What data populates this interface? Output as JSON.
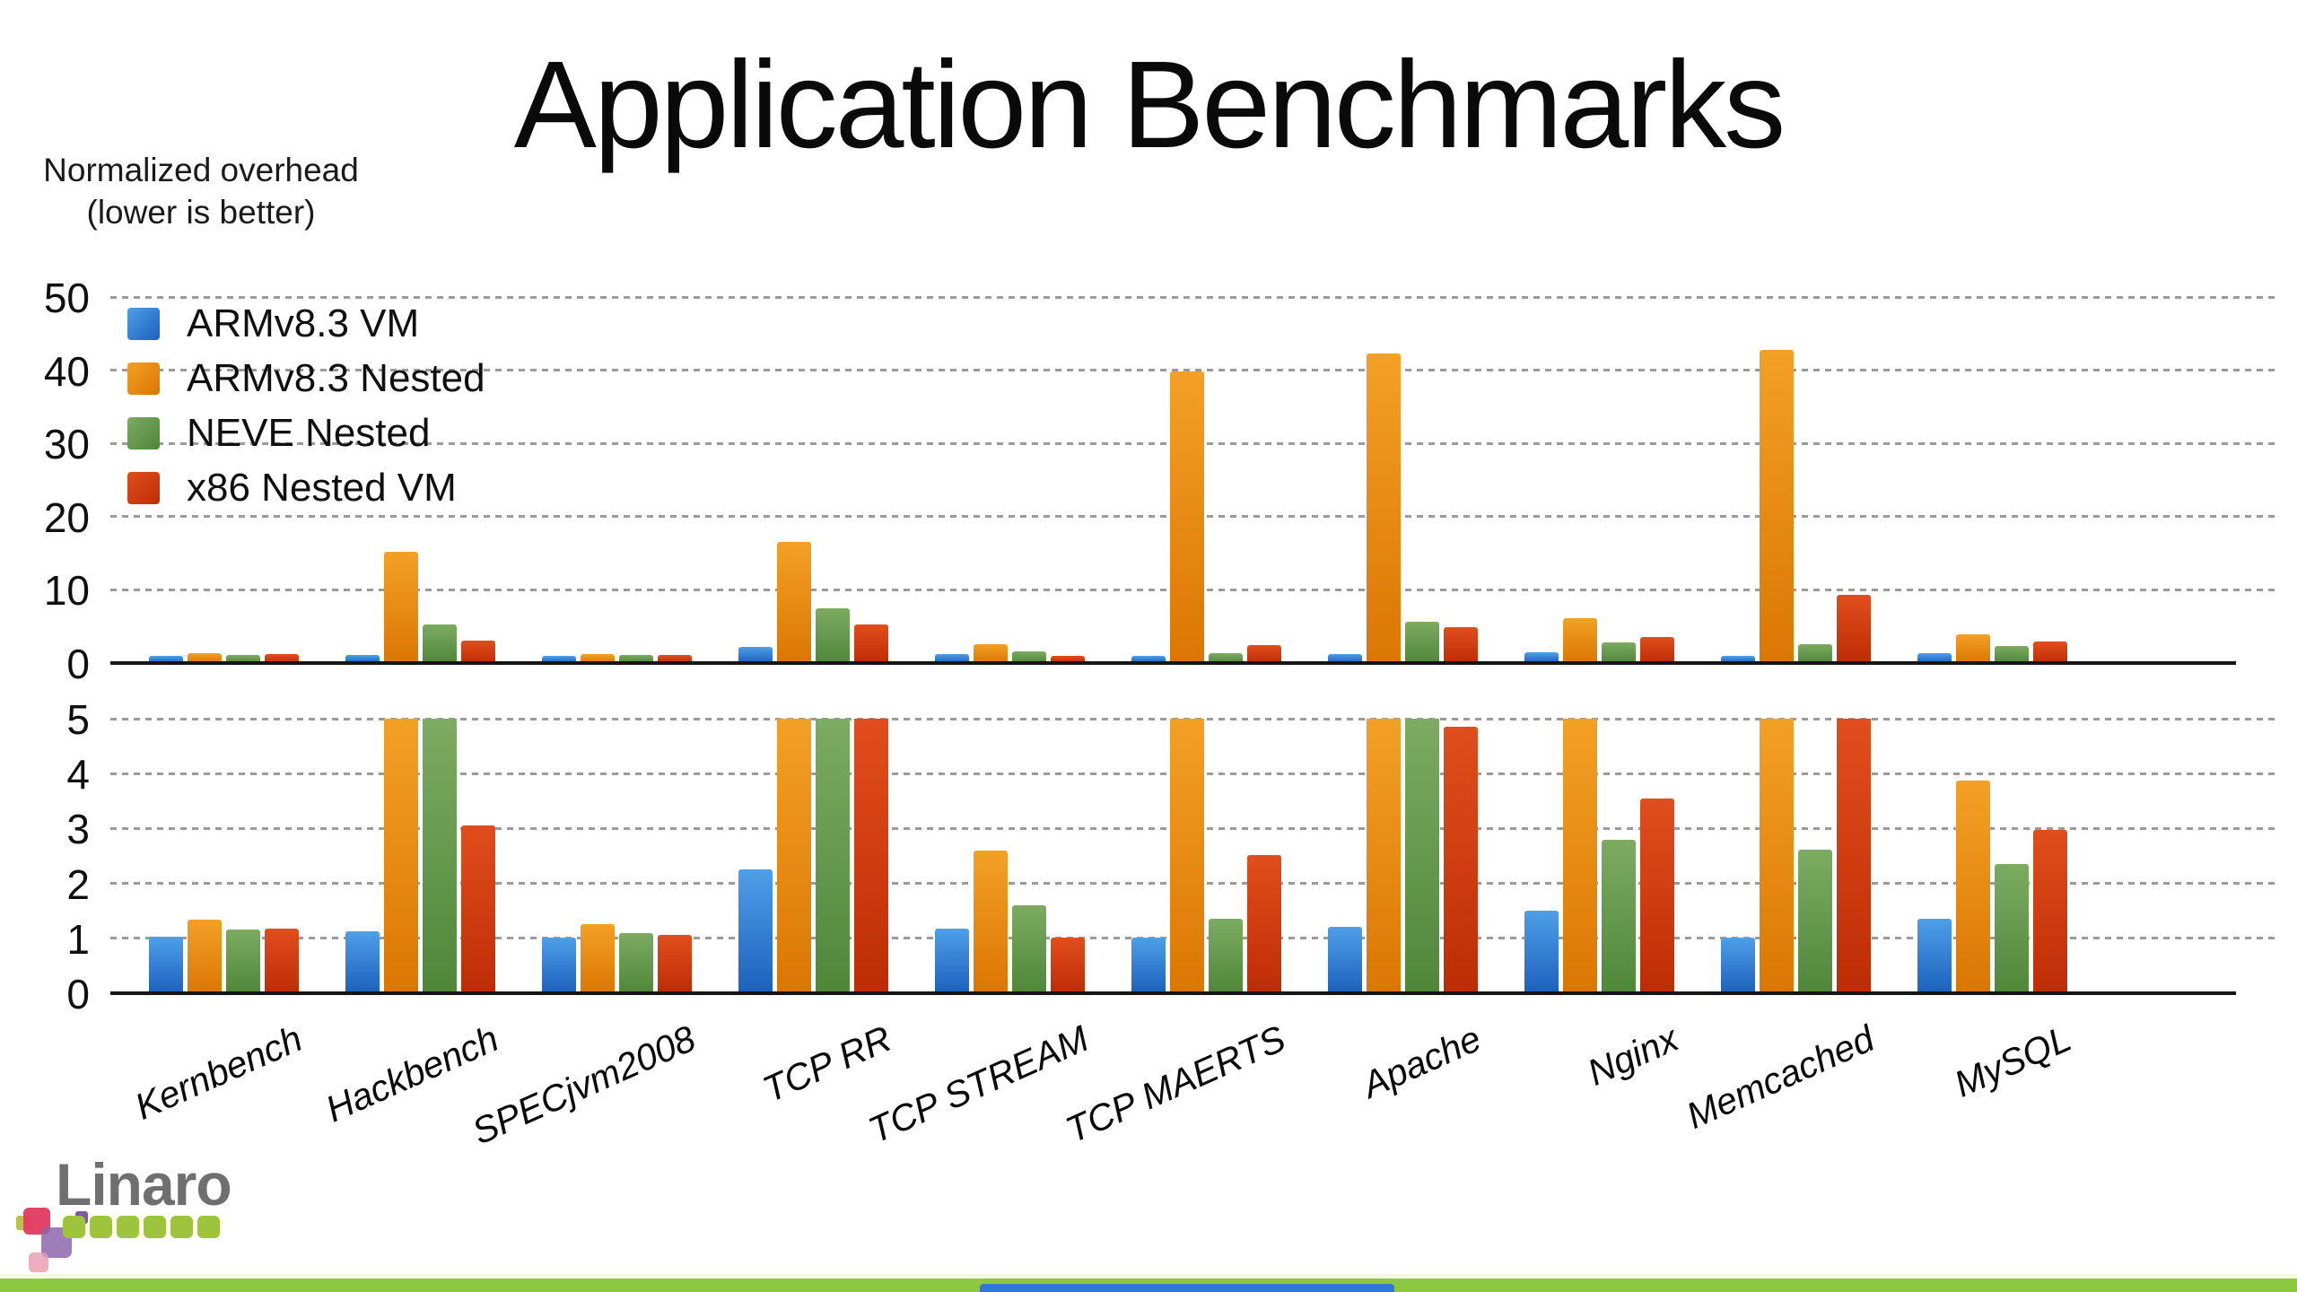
{
  "slide": {
    "title": "Application Benchmarks",
    "note_line1": "Normalized overhead",
    "note_line2": "(lower is better)"
  },
  "chart_data": {
    "type": "bar",
    "title": "Application Benchmarks",
    "note": "Normalized overhead (lower is better)",
    "grid": "horizontal dotted",
    "legend_position": "top-left inside upper panel",
    "categories": [
      "Kernbench",
      "Hackbench",
      "SPECjvm2008",
      "TCP RR",
      "TCP STREAM",
      "TCP MAERTS",
      "Apache",
      "Nginx",
      "Memcached",
      "MySQL"
    ],
    "series": [
      {
        "name": "ARMv8.3 VM",
        "color": "#2E7FD6",
        "color_top": "#4f9fe8",
        "color_bottom": "#1b61bd",
        "values": [
          1.03,
          1.13,
          1.02,
          2.25,
          1.17,
          1.02,
          1.21,
          1.5,
          1.01,
          1.35
        ]
      },
      {
        "name": "ARMv8.3 Nested",
        "color": "#E8870F",
        "color_top": "#f3a026",
        "color_bottom": "#db7603",
        "values": [
          1.34,
          15.2,
          1.26,
          16.5,
          2.59,
          39.8,
          42.3,
          6.1,
          42.8,
          3.88
        ]
      },
      {
        "name": "NEVE Nested",
        "color": "#659B4B",
        "color_top": "#7cab61",
        "color_bottom": "#4f8739",
        "values": [
          1.16,
          5.3,
          1.1,
          7.5,
          1.6,
          1.36,
          5.6,
          2.79,
          2.61,
          2.36
        ]
      },
      {
        "name": "x86 Nested VM",
        "color": "#D4380D",
        "color_top": "#e14e1d",
        "color_bottom": "#bd2d05",
        "values": [
          1.18,
          3.06,
          1.06,
          5.3,
          1.02,
          2.51,
          4.86,
          3.54,
          9.3,
          2.97
        ]
      }
    ],
    "panels": [
      {
        "name": "overview",
        "ylim": [
          0,
          50
        ],
        "yticks": [
          0,
          10,
          20,
          30,
          40,
          50
        ],
        "clip_at": null
      },
      {
        "name": "zoom",
        "ylim": [
          0,
          5
        ],
        "yticks": [
          0,
          1,
          2,
          3,
          4,
          5
        ],
        "clip_at": 5
      }
    ],
    "colors": {
      "axis": "#151515",
      "gridline": "#9b9b9b"
    }
  },
  "footer": {
    "logo_text": "Linaro",
    "strip_color": "#8dc63f",
    "progress_bar_color": "#2e79d8"
  }
}
